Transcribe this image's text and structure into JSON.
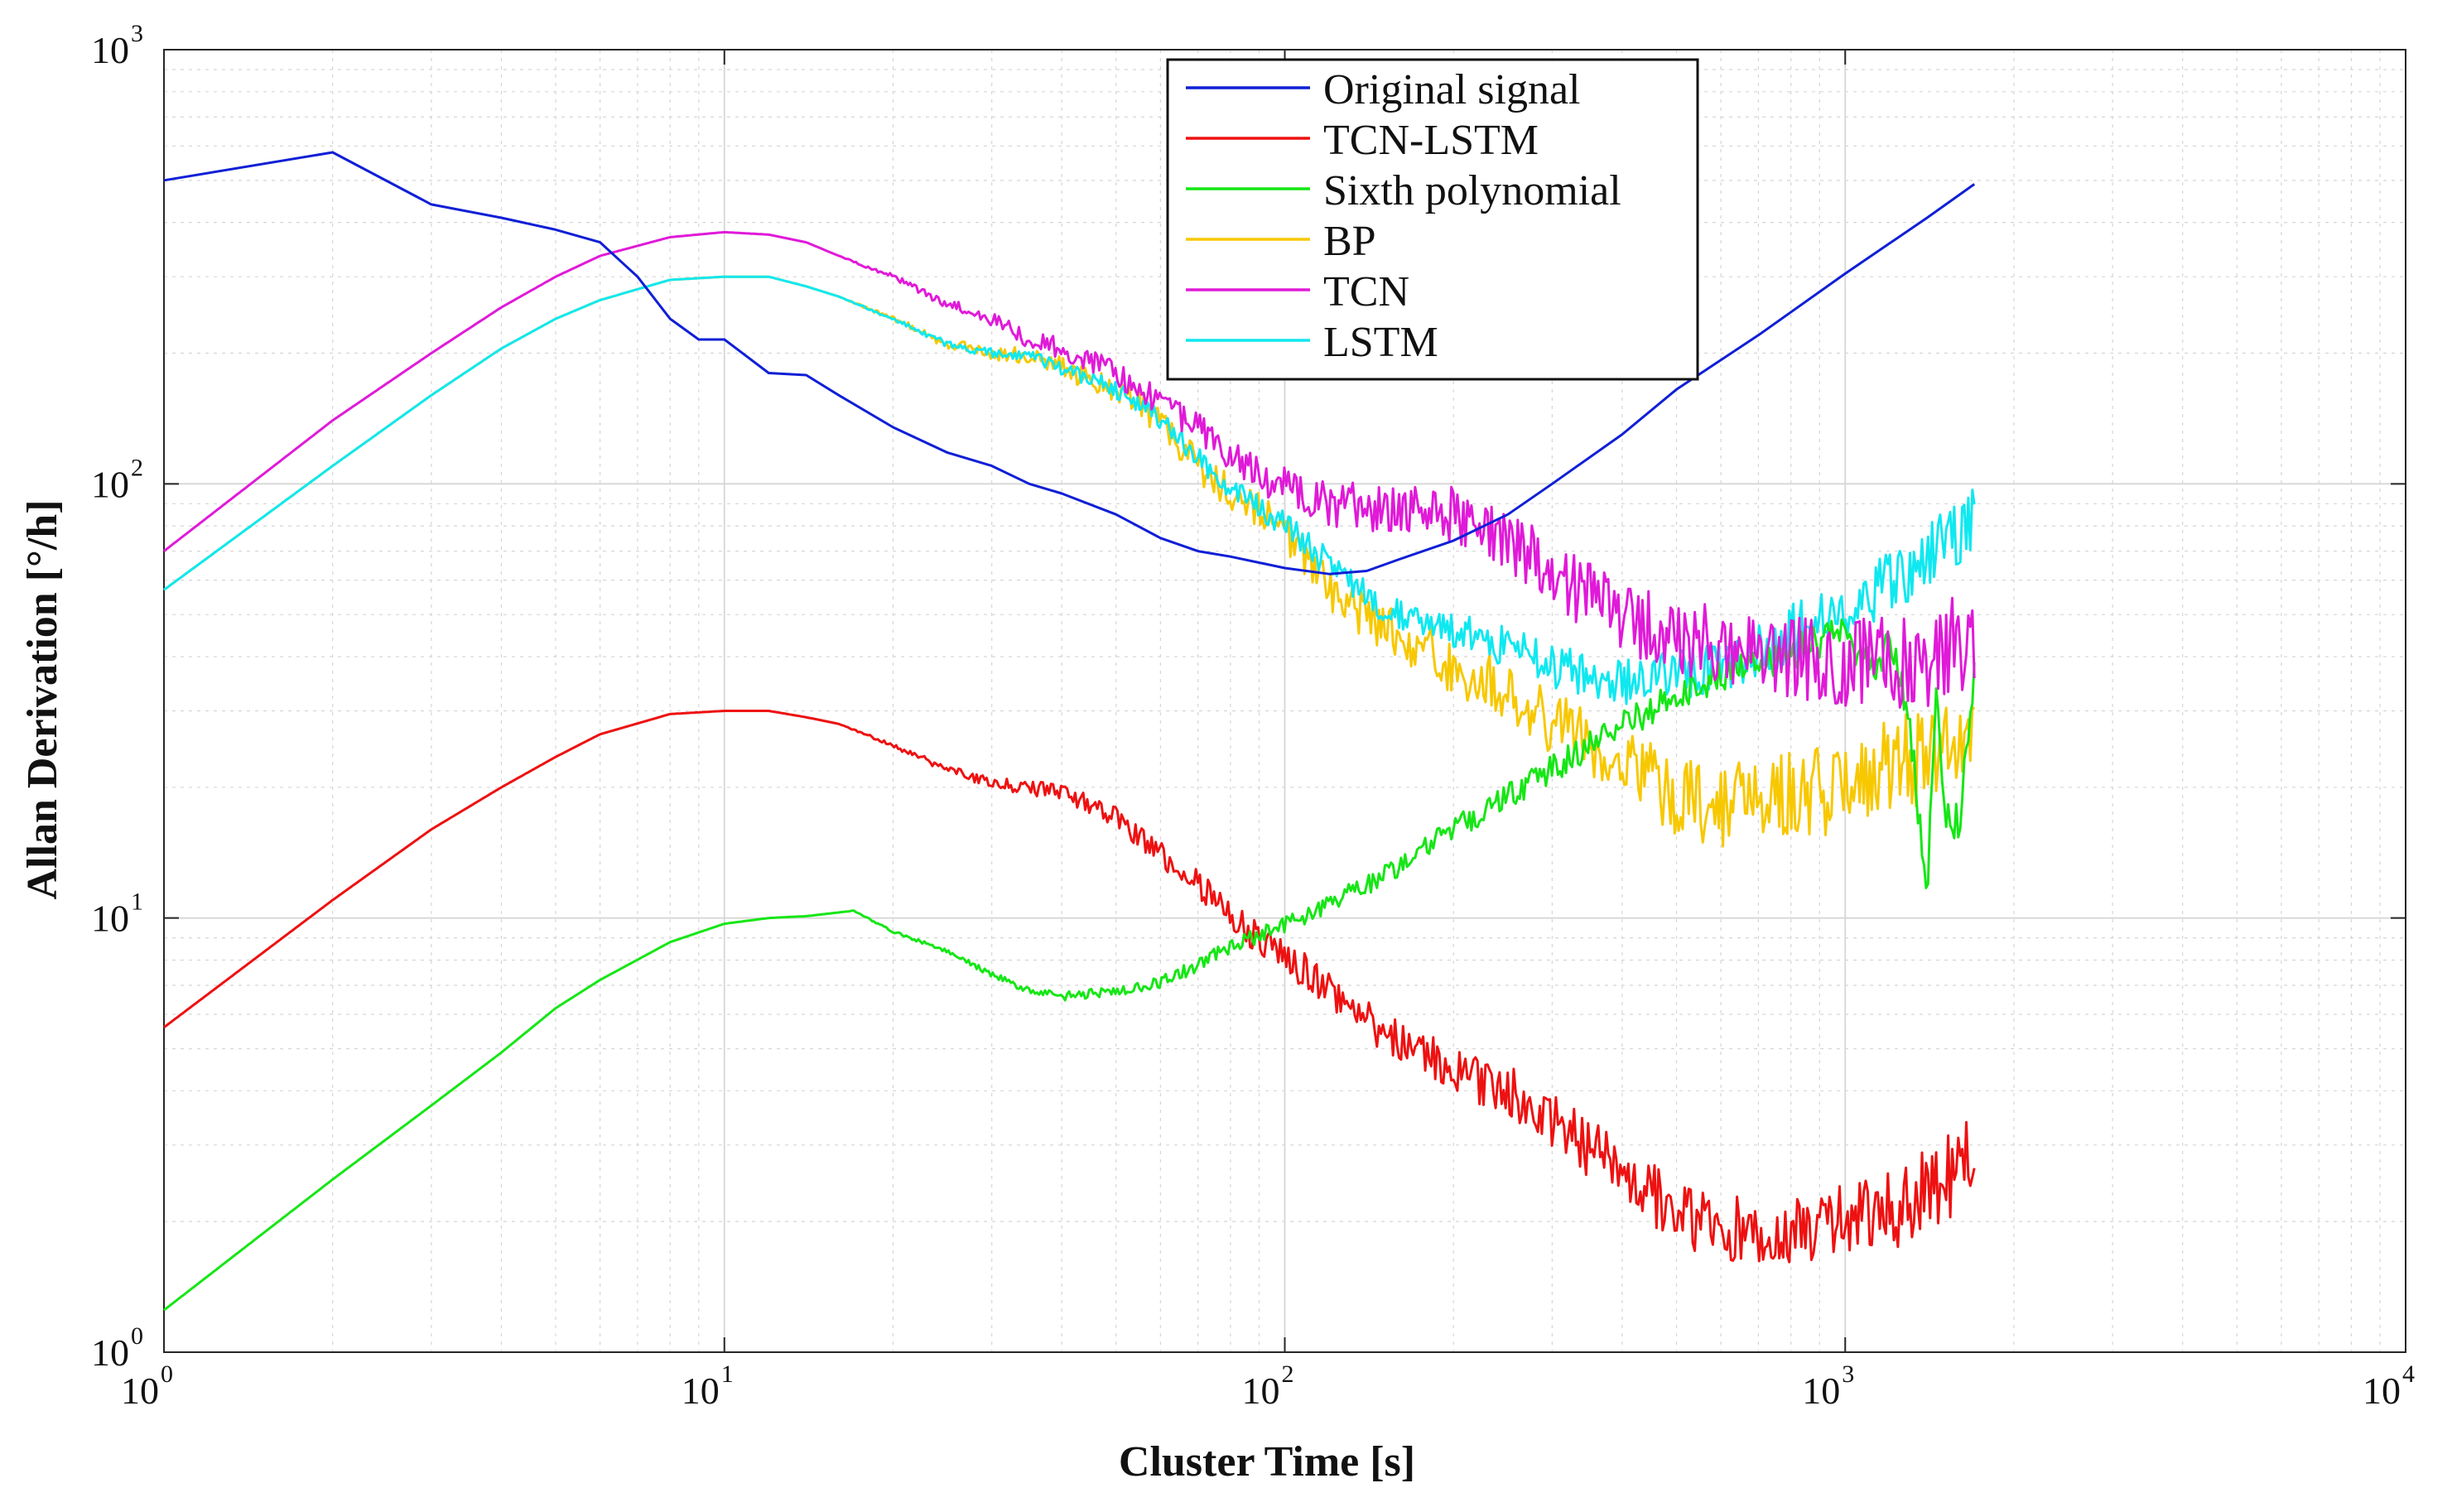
{
  "colors": {
    "original": "#0f1fd6",
    "tcn_lstm": "#ee1111",
    "sixth": "#16e616",
    "bp": "#f7c800",
    "tcn": "#e01ad8",
    "lstm": "#10e8f0",
    "grid": "#d6d6d6",
    "axis": "#262626"
  },
  "chart_data": {
    "type": "line",
    "xscale": "log",
    "yscale": "log",
    "xlabel": "Cluster Time [s]",
    "ylabel": "Allan Derivation [°/h]",
    "xlim": [
      1,
      10000
    ],
    "ylim": [
      1,
      1000
    ],
    "grid": true,
    "legend_position": "top-center",
    "x_ticks": [
      {
        "base": "10",
        "exp": "0"
      },
      {
        "base": "10",
        "exp": "1"
      },
      {
        "base": "10",
        "exp": "2"
      },
      {
        "base": "10",
        "exp": "3"
      },
      {
        "base": "10",
        "exp": "4"
      }
    ],
    "y_ticks": [
      {
        "base": "10",
        "exp": "0"
      },
      {
        "base": "10",
        "exp": "1"
      },
      {
        "base": "10",
        "exp": "2"
      },
      {
        "base": "10",
        "exp": "3"
      }
    ],
    "series": [
      {
        "name": "Original signal",
        "color_key": "original",
        "noise": 0,
        "x": [
          1,
          2,
          3,
          4,
          5,
          6,
          7,
          8,
          9,
          10,
          12,
          14,
          16,
          20,
          25,
          30,
          35,
          40,
          50,
          60,
          70,
          80,
          100,
          120,
          140,
          160,
          200,
          250,
          300,
          400,
          500,
          700,
          1000,
          1400,
          1700
        ],
        "values": [
          500,
          580,
          440,
          410,
          385,
          360,
          300,
          240,
          215,
          215,
          180,
          178,
          160,
          135,
          118,
          110,
          100,
          95,
          85,
          75,
          70,
          68,
          64,
          62,
          63,
          67,
          74,
          85,
          100,
          130,
          165,
          220,
          305,
          410,
          490
        ]
      },
      {
        "name": "TCN-LSTM",
        "color_key": "tcn_lstm",
        "noise": 0.1,
        "x": [
          1,
          2,
          3,
          4,
          5,
          6,
          8,
          10,
          12,
          14,
          16,
          20,
          25,
          30,
          35,
          40,
          50,
          60,
          70,
          80,
          100,
          120,
          150,
          200,
          250,
          300,
          400,
          500,
          600,
          800,
          1000,
          1300,
          1700
        ],
        "values": [
          5.6,
          11,
          16,
          20,
          23.5,
          26.5,
          29.5,
          30,
          30,
          29,
          28,
          25,
          22,
          20.5,
          20,
          19.5,
          17,
          14,
          12,
          10,
          8.2,
          6.8,
          5.4,
          4.5,
          4,
          3.4,
          2.6,
          2.1,
          1.9,
          1.9,
          2,
          2.2,
          2.8
        ]
      },
      {
        "name": "Sixth polynomial",
        "color_key": "sixth",
        "noise": 0.05,
        "x": [
          1,
          2,
          3,
          4,
          5,
          6,
          8,
          10,
          12,
          14,
          16,
          17,
          20,
          25,
          30,
          35,
          40,
          50,
          60,
          70,
          80,
          100,
          150,
          200,
          300,
          400,
          600,
          800,
          1000,
          1100,
          1200,
          1300,
          1400,
          1450,
          1500,
          1600,
          1700
        ],
        "values": [
          1.25,
          2.5,
          3.7,
          4.9,
          6.2,
          7.2,
          8.8,
          9.7,
          10,
          10.1,
          10.3,
          10.4,
          9.3,
          8.4,
          7.4,
          6.8,
          6.6,
          6.8,
          7.1,
          7.8,
          8.6,
          9.6,
          12.5,
          16,
          22,
          28,
          36,
          41,
          45,
          38,
          42,
          30,
          10.5,
          35,
          18,
          16.5,
          35
        ]
      },
      {
        "name": "BP",
        "color_key": "bp",
        "noise": 0.12,
        "x": [
          1,
          2,
          3,
          4,
          5,
          6,
          8,
          10,
          12,
          14,
          16,
          20,
          25,
          30,
          35,
          40,
          50,
          60,
          70,
          80,
          100,
          120,
          150,
          200,
          250,
          300,
          400,
          500,
          600,
          800,
          1000,
          1300,
          1600,
          1700
        ],
        "values": [
          57,
          110,
          160,
          205,
          240,
          265,
          295,
          300,
          300,
          285,
          270,
          240,
          210,
          200,
          198,
          185,
          165,
          140,
          110,
          95,
          78,
          58,
          46,
          38,
          33,
          28,
          23,
          19,
          18,
          19,
          20,
          23,
          24,
          30
        ]
      },
      {
        "name": "TCN",
        "color_key": "tcn",
        "noise": 0.12,
        "x": [
          1,
          2,
          3,
          4,
          5,
          6,
          8,
          10,
          12,
          14,
          16,
          20,
          25,
          30,
          35,
          40,
          50,
          60,
          70,
          80,
          100,
          120,
          150,
          200,
          250,
          300,
          350,
          400,
          500,
          600,
          800,
          1000,
          1200,
          1400,
          1700
        ],
        "values": [
          70,
          140,
          200,
          255,
          300,
          335,
          370,
          380,
          375,
          360,
          335,
          300,
          260,
          240,
          215,
          205,
          180,
          155,
          135,
          115,
          98,
          90,
          87,
          85,
          75,
          62,
          55,
          50,
          45,
          42,
          40,
          38,
          39,
          40,
          45
        ]
      },
      {
        "name": "LSTM",
        "color_key": "lstm",
        "noise": 0.08,
        "x": [
          1,
          2,
          3,
          4,
          5,
          6,
          8,
          10,
          12,
          14,
          16,
          20,
          25,
          30,
          35,
          40,
          50,
          60,
          70,
          80,
          100,
          120,
          150,
          200,
          250,
          300,
          400,
          500,
          600,
          800,
          1000,
          1200,
          1400,
          1600,
          1700
        ],
        "values": [
          57,
          110,
          160,
          205,
          240,
          265,
          295,
          300,
          300,
          285,
          270,
          240,
          210,
          200,
          198,
          185,
          165,
          140,
          115,
          98,
          80,
          65,
          52,
          46,
          42,
          38,
          35,
          36,
          38,
          45,
          52,
          60,
          68,
          78,
          85
        ]
      }
    ]
  }
}
